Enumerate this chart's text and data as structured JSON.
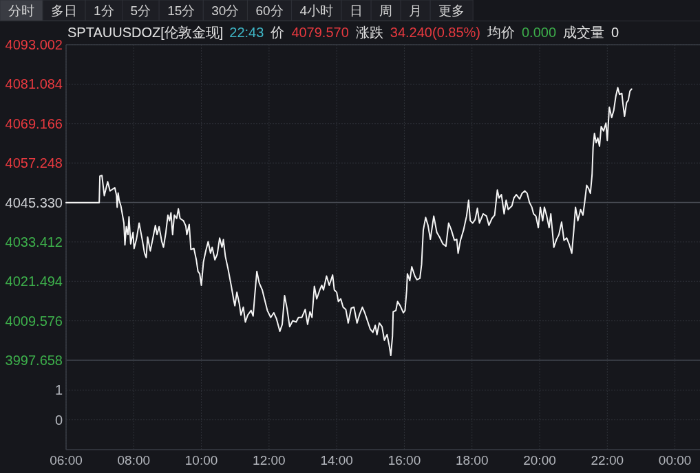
{
  "chart_data": [
    {
      "type": "line",
      "title": "SPTAUUSDOZ[伦敦金现]",
      "annotations": [
        "分时",
        "多日",
        "1分",
        "5分",
        "15分",
        "30分",
        "60分",
        "4小时",
        "日",
        "周",
        "月",
        "更多",
        "22:43",
        "价",
        "4079.570",
        "涨跌",
        "34.240(0.85%)",
        "均价",
        "0.000",
        "成交量",
        "0"
      ],
      "x": [
        6,
        6.98,
        7.0,
        7.06,
        7.13,
        7.23,
        7.3,
        7.44,
        7.49,
        7.51,
        7.54,
        7.57,
        7.62,
        7.71,
        7.74,
        7.78,
        7.83,
        7.86,
        7.91,
        7.98,
        8.01,
        8.08,
        8.16,
        8.25,
        8.32,
        8.37,
        8.41,
        8.49,
        8.56,
        8.64,
        8.69,
        8.75,
        8.83,
        8.88,
        8.95,
        9.01,
        9.06,
        9.1,
        9.15,
        9.2,
        9.27,
        9.32,
        9.37,
        9.47,
        9.54,
        9.57,
        9.64,
        9.69,
        9.78,
        9.85,
        9.9,
        9.95,
        10.0,
        10.06,
        10.13,
        10.2,
        10.27,
        10.32,
        10.4,
        10.47,
        10.54,
        10.61,
        10.65,
        10.71,
        10.79,
        10.88,
        10.95,
        10.99,
        11.05,
        11.12,
        11.17,
        11.24,
        11.3,
        11.37,
        11.47,
        11.53,
        11.58,
        11.64,
        11.71,
        11.8,
        11.85,
        11.95,
        12.05,
        12.14,
        12.22,
        12.32,
        12.39,
        12.46,
        12.53,
        12.61,
        12.7,
        12.8,
        12.87,
        12.97,
        13.07,
        13.14,
        13.21,
        13.27,
        13.34,
        13.41,
        13.5,
        13.56,
        13.61,
        13.7,
        13.78,
        13.88,
        13.93,
        14.0,
        14.05,
        14.12,
        14.19,
        14.27,
        14.34,
        14.43,
        14.51,
        14.6,
        14.68,
        14.76,
        14.83,
        14.9,
        14.99,
        15.07,
        15.14,
        15.19,
        15.26,
        15.34,
        15.41,
        15.49,
        15.55,
        15.6,
        15.65,
        15.67,
        15.75,
        15.8,
        15.88,
        15.97,
        16.02,
        16.07,
        16.09,
        16.16,
        16.22,
        16.31,
        16.37,
        16.46,
        16.51,
        16.56,
        16.63,
        16.7,
        16.77,
        16.87,
        16.96,
        17.04,
        17.14,
        17.23,
        17.31,
        17.39,
        17.48,
        17.55,
        17.59,
        17.66,
        17.75,
        17.84,
        17.9,
        17.95,
        18.02,
        18.09,
        18.16,
        18.22,
        18.33,
        18.43,
        18.5,
        18.59,
        18.67,
        18.75,
        18.8,
        18.87,
        18.95,
        19.01,
        19.07,
        19.18,
        19.24,
        19.31,
        19.41,
        19.48,
        19.56,
        19.63,
        19.7,
        19.77,
        19.82,
        19.89,
        19.96,
        20.02,
        20.09,
        20.14,
        20.21,
        20.28,
        20.33,
        20.38,
        20.42,
        20.5,
        20.57,
        20.65,
        20.72,
        20.8,
        20.87,
        20.95,
        21.01,
        21.06,
        21.13,
        21.21,
        21.28,
        21.33,
        21.39,
        21.45,
        21.5,
        21.55,
        21.58,
        21.62,
        21.67,
        21.72,
        21.77,
        21.82,
        21.89,
        21.96,
        22.0,
        22.06,
        22.13,
        22.19,
        22.25,
        22.31,
        22.36,
        22.43,
        22.47,
        22.51,
        22.57,
        22.62,
        22.67,
        22.72
      ],
      "series": [
        {
          "color": "#f5f5f5",
          "values": [
            4045.3,
            4045.3,
            4053.3,
            4053.5,
            4047.4,
            4051.6,
            4048.8,
            4049.8,
            4047.5,
            4043.9,
            4048.2,
            4046.0,
            4044.3,
            4039.1,
            4032.5,
            4038.0,
            4035.6,
            4041.0,
            4032.8,
            4036.3,
            4031.4,
            4034.2,
            4039.1,
            4034.2,
            4030.0,
            4028.7,
            4034.9,
            4030.7,
            4034.2,
            4038.4,
            4035.6,
            4038.0,
            4033.5,
            4031.8,
            4036.3,
            4041.5,
            4039.8,
            4042.2,
            4035.6,
            4041.5,
            4040.5,
            4043.4,
            4040.5,
            4039.8,
            4038.2,
            4035.6,
            4038.7,
            4031.1,
            4031.4,
            4028.0,
            4024.5,
            4023.8,
            4020.3,
            4027.3,
            4030.7,
            4033.5,
            4030.0,
            4031.8,
            4028.0,
            4029.7,
            4034.6,
            4031.8,
            4034.1,
            4029.0,
            4025.2,
            4020.3,
            4016.2,
            4014.1,
            4018.2,
            4014.8,
            4011.3,
            4013.7,
            4009.2,
            4011.3,
            4012.7,
            4011.0,
            4017.5,
            4024.5,
            4021.0,
            4018.9,
            4016.8,
            4012.7,
            4010.6,
            4012.0,
            4010.2,
            4006.4,
            4008.5,
            4017.2,
            4013.4,
            4007.8,
            4009.6,
            4009.2,
            4010.6,
            4010.6,
            4013.0,
            4008.5,
            4012.3,
            4010.6,
            4020.0,
            4016.2,
            4018.9,
            4020.3,
            4018.9,
            4023.1,
            4020.3,
            4023.4,
            4018.9,
            4018.2,
            4015.4,
            4016.2,
            4013.7,
            4013.0,
            4008.9,
            4013.4,
            4013.7,
            4008.9,
            4011.6,
            4013.7,
            4012.0,
            4009.9,
            4007.1,
            4006.1,
            4008.2,
            4005.4,
            4008.9,
            4007.8,
            4003.7,
            4005.4,
            4002.3,
            3999.1,
            4005.0,
            4012.3,
            4012.7,
            4015.4,
            4014.1,
            4012.0,
            4012.7,
            4018.9,
            4023.8,
            4021.7,
            4025.9,
            4023.1,
            4022.0,
            4022.4,
            4026.6,
            4037.0,
            4040.8,
            4038.4,
            4034.2,
            4041.2,
            4036.3,
            4034.9,
            4032.8,
            4032.1,
            4039.1,
            4037.0,
            4033.9,
            4034.2,
            4030.0,
            4033.9,
            4037.0,
            4041.2,
            4046.0,
            4039.8,
            4039.1,
            4040.1,
            4043.6,
            4039.1,
            4041.9,
            4041.2,
            4038.4,
            4040.5,
            4041.5,
            4049.1,
            4046.7,
            4047.7,
            4041.9,
            4046.0,
            4043.2,
            4044.3,
            4046.7,
            4047.7,
            4046.4,
            4048.1,
            4048.8,
            4048.1,
            4045.3,
            4043.9,
            4041.9,
            4041.2,
            4037.7,
            4043.9,
            4039.8,
            4043.9,
            4041.2,
            4037.7,
            4041.9,
            4036.3,
            4031.8,
            4034.2,
            4035.6,
            4039.4,
            4033.9,
            4034.6,
            4032.8,
            4030.0,
            4037.0,
            4043.9,
            4039.8,
            4043.2,
            4041.5,
            4045.3,
            4050.5,
            4049.5,
            4048.1,
            4053.7,
            4062.0,
            4066.2,
            4063.4,
            4064.8,
            4062.3,
            4068.3,
            4066.9,
            4069.3,
            4064.1,
            4074.1,
            4071.0,
            4073.1,
            4077.3,
            4080.0,
            4078.0,
            4078.3,
            4074.5,
            4071.4,
            4075.5,
            4076.2,
            4079.0,
            4079.6
          ]
        }
      ],
      "xlim": [
        6,
        24.7
      ],
      "xticks": [
        6,
        8,
        10,
        12,
        14,
        16,
        18,
        20,
        22,
        24
      ],
      "ylim": [
        3997.658,
        4093.002
      ],
      "yticks": [
        4093.002,
        4081.084,
        4069.166,
        4057.248,
        {
          "value": 4045.33,
          "label": "4045.330"
        },
        4033.412,
        4021.494,
        4009.576,
        3997.658
      ],
      "tick_labels": "y",
      "grid": true,
      "ref_lines": [
        {
          "axis": "y",
          "value": 4045.33,
          "color": "#484b53"
        }
      ]
    },
    {
      "type": "bar",
      "xlim": [
        6,
        24.7
      ],
      "xticks": [
        {
          "value": 6,
          "label": "06:00"
        },
        {
          "value": 8,
          "label": "08:00"
        },
        {
          "value": 10,
          "label": "10:00"
        },
        {
          "value": 12,
          "label": "12:00"
        },
        {
          "value": 14,
          "label": "14:00"
        },
        {
          "value": 16,
          "label": "16:00"
        },
        {
          "value": 18,
          "label": "18:00"
        },
        {
          "value": 20,
          "label": "20:00"
        },
        {
          "value": 22,
          "label": "22:00"
        },
        {
          "value": 24,
          "label": "00:00"
        }
      ],
      "ylim": [
        -1,
        2
      ],
      "yticks": [
        0,
        1
      ],
      "grid": true
    }
  ]
}
